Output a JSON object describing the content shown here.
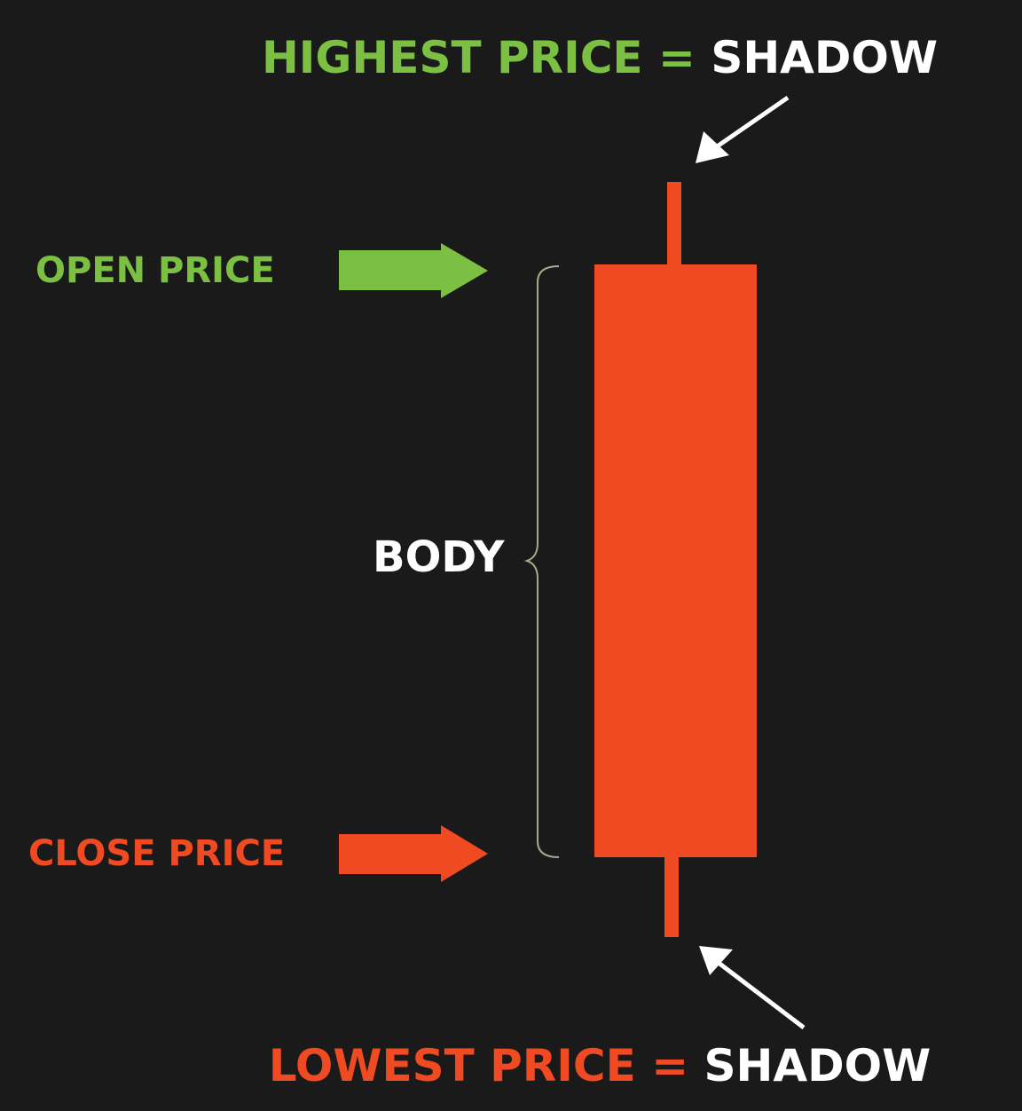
{
  "labels": {
    "highest": "HIGHEST PRICE",
    "lowest": "LOWEST PRICE",
    "equals": "=",
    "shadow_top": "SHADOW",
    "shadow_bottom": "SHADOW",
    "open": "OPEN PRICE",
    "close": "CLOSE PRICE",
    "body": "BODY"
  },
  "colors": {
    "background": "#1a1a1a",
    "green": "#7bc043",
    "red": "#f04a23",
    "white": "#ffffff",
    "brace": "#a8a88c"
  },
  "icons": {
    "open_arrow": "right-arrow-icon",
    "close_arrow": "right-arrow-icon",
    "shadow_top_pointer": "down-left-arrow-icon",
    "shadow_bottom_pointer": "up-left-arrow-icon"
  }
}
